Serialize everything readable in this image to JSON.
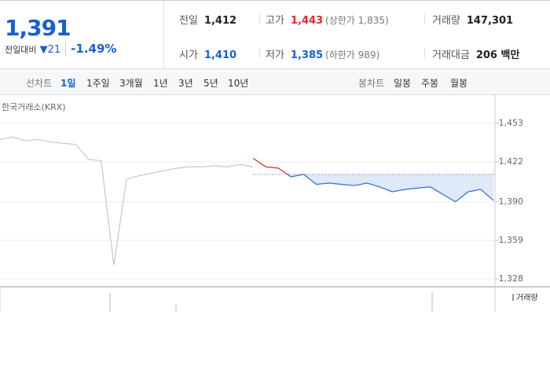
{
  "header": {
    "price": "1,391",
    "change_label": "전일대비",
    "change": "21",
    "change_pct": "-1.49%",
    "stats": [
      {
        "label": "전일",
        "value": "1,412"
      },
      {
        "label": "고가",
        "value": "1,443",
        "note": "(상한가 1,835)"
      },
      {
        "label": "거래량",
        "value": "147,301"
      },
      {
        "label": "시가",
        "value": "1,410"
      },
      {
        "label": "저가",
        "value": "1,385",
        "note": "(하한가 989)"
      },
      {
        "label": "거래대금",
        "value": "206 백만"
      }
    ]
  },
  "tabs": {
    "line_label": "선차트",
    "line": [
      "1일",
      "1주일",
      "3개월",
      "1년",
      "3년",
      "5년",
      "10년"
    ],
    "candle_label": "봉차트",
    "candle": [
      "일봉",
      "주봉",
      "월봉"
    ]
  },
  "chart_data": {
    "type": "line",
    "source": "한국거래소(KRX)",
    "volume_label": "거래량",
    "ylim": [
      1328,
      1453
    ],
    "yticks": [
      {
        "value": 1453,
        "label": "1,453"
      },
      {
        "value": 1422,
        "label": "1,422"
      },
      {
        "value": 1390,
        "label": "1,390"
      },
      {
        "value": 1359,
        "label": "1,359"
      },
      {
        "value": 1328,
        "label": "1,328"
      }
    ],
    "reference": 1412,
    "series": [
      {
        "color": "#c8c8c8",
        "values": [
          1440,
          1442,
          1439,
          1440,
          1438,
          1437,
          1436,
          1424,
          1423,
          1339,
          1408,
          1411,
          1413,
          1415,
          1417,
          1418,
          1418,
          1419,
          1418,
          1420,
          1418,
          null,
          null,
          null,
          null,
          null,
          null,
          null,
          null,
          null,
          null,
          null,
          null,
          null,
          null,
          null,
          null,
          null,
          null,
          null
        ]
      },
      {
        "color": "#2d6fd3",
        "up_color": "#e2262b",
        "fill": "#dfe9f8",
        "values": [
          null,
          null,
          null,
          null,
          null,
          null,
          null,
          null,
          null,
          null,
          null,
          null,
          null,
          null,
          null,
          null,
          null,
          null,
          null,
          null,
          1425,
          1418,
          1417,
          1410,
          1412,
          1404,
          1405,
          1404,
          1403,
          1405,
          1402,
          1398,
          1400,
          1401,
          1402,
          1396,
          1390,
          1398,
          1400,
          1391
        ]
      }
    ]
  }
}
